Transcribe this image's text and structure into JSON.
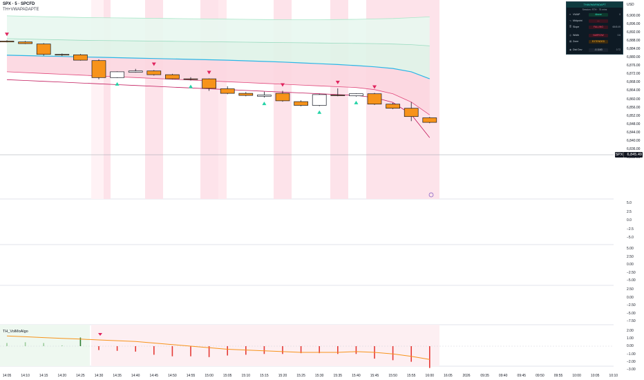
{
  "header": {
    "symbol_line": "SPX · 5 · SPCFD",
    "indicator_line": "TH+VWAPADAPTE",
    "currency": "USD"
  },
  "price_axis": {
    "labels": [
      "6,900.00",
      "6,896.00",
      "6,892.00",
      "6,888.00",
      "6,884.00",
      "6,880.00",
      "6,876.00",
      "6,872.00",
      "6,868.00",
      "6,864.00",
      "6,860.00",
      "6,856.00",
      "6,852.00",
      "6,848.00",
      "6,844.00",
      "6,840.00",
      "6,836.00",
      "6,832.00"
    ],
    "last_price_symbol": "SPX",
    "last_price": "6,845.49"
  },
  "pane_axes": {
    "pane2": [
      "5.0",
      "2.5",
      "0.0",
      "−2.5",
      "−5.0"
    ],
    "pane3": [
      "5.00",
      "2.50",
      "0.00",
      "−2.50",
      "−5.00"
    ],
    "pane4": [
      "2.50",
      "0.00",
      "−2.50",
      "−5.00",
      "−7.50"
    ],
    "pane5": [
      "2.00",
      "1.00",
      "0.00",
      "−1.00",
      "−2.00",
      "−3.00"
    ]
  },
  "time_axis": {
    "labels": [
      "14:05",
      "14:10",
      "14:15",
      "14:20",
      "14:25",
      "14:30",
      "14:35",
      "14:40",
      "14:45",
      "14:50",
      "14:55",
      "15:00",
      "15:05",
      "15:10",
      "15:15",
      "15:20",
      "15:25",
      "15:30",
      "15:35",
      "15:40",
      "15:45",
      "15:50",
      "15:55",
      "16:00",
      "16:05",
      "2026",
      "09:35",
      "09:40",
      "09:45",
      "09:50",
      "09:55",
      "10:00",
      "10:05",
      "10:10"
    ]
  },
  "volmo": {
    "title": "TH_VolMoAlgo"
  },
  "dashboard": {
    "title": "THAVWAPADAPT",
    "subtitle": "Session: RTH · 75 mins",
    "rows": [
      {
        "icon": "≡",
        "label": "VWAP",
        "value": "Above",
        "value_color": "#0e3a2e",
        "text_color": "#2ee6c8",
        "extra": "0"
      },
      {
        "icon": "∿",
        "label": "Midpoint",
        "value": "—",
        "value_color": "#3a1420",
        "text_color": "#ff4d6d",
        "extra": ""
      },
      {
        "icon": "≣",
        "label": "Slope",
        "value": "FALLING",
        "value_color": "#3a1420",
        "text_color": "#ff4d6d",
        "extra": "6845.49"
      },
      {
        "icon": "◎",
        "label": "Width",
        "value": "NARROW",
        "value_color": "#3a1420",
        "text_color": "#ff4d6d",
        "extra": "0.6"
      },
      {
        "icon": "▤",
        "label": "Zone",
        "value": "EXTENDED",
        "value_color": "#3a2a10",
        "text_color": "#ffb020",
        "extra": ""
      },
      {
        "icon": "◉",
        "label": "Dist Dev",
        "value": "-0.1163",
        "value_color": "#1a2430",
        "text_color": "#c9d1d9",
        "extra": "0.72"
      }
    ]
  },
  "chart_data": {
    "type": "candlestick",
    "times": [
      "14:05",
      "14:10",
      "14:15",
      "14:20",
      "14:25",
      "14:30",
      "14:35",
      "14:40",
      "14:45",
      "14:50",
      "14:55",
      "15:00",
      "15:05",
      "15:10",
      "15:15",
      "15:20",
      "15:25",
      "15:30",
      "15:35",
      "15:40",
      "15:45",
      "15:50",
      "15:55",
      "16:00"
    ],
    "candles": [
      {
        "t": "14:05",
        "o": 6888.0,
        "h": 6888.4,
        "l": 6887.4,
        "c": 6887.6
      },
      {
        "t": "14:10",
        "o": 6887.6,
        "h": 6888.0,
        "l": 6886.6,
        "c": 6886.8
      },
      {
        "t": "14:15",
        "o": 6886.6,
        "h": 6887.0,
        "l": 6881.0,
        "c": 6881.6
      },
      {
        "t": "14:20",
        "o": 6881.6,
        "h": 6882.0,
        "l": 6880.8,
        "c": 6881.4
      },
      {
        "t": "14:25",
        "o": 6881.4,
        "h": 6881.8,
        "l": 6878.6,
        "c": 6878.8
      },
      {
        "t": "14:30",
        "o": 6878.6,
        "h": 6879.2,
        "l": 6869.6,
        "c": 6870.4
      },
      {
        "t": "14:35",
        "o": 6870.4,
        "h": 6873.4,
        "l": 6870.2,
        "c": 6873.2
      },
      {
        "t": "14:40",
        "o": 6873.0,
        "h": 6874.6,
        "l": 6872.8,
        "c": 6873.6
      },
      {
        "t": "14:45",
        "o": 6873.6,
        "h": 6874.0,
        "l": 6871.4,
        "c": 6871.8
      },
      {
        "t": "14:50",
        "o": 6871.8,
        "h": 6872.2,
        "l": 6869.6,
        "c": 6869.8
      },
      {
        "t": "14:55",
        "o": 6869.8,
        "h": 6870.6,
        "l": 6869.0,
        "c": 6869.6
      },
      {
        "t": "15:00",
        "o": 6869.8,
        "h": 6870.0,
        "l": 6864.0,
        "c": 6865.2
      },
      {
        "t": "15:05",
        "o": 6865.0,
        "h": 6866.2,
        "l": 6862.4,
        "c": 6862.8
      },
      {
        "t": "15:10",
        "o": 6862.8,
        "h": 6863.4,
        "l": 6861.4,
        "c": 6861.8
      },
      {
        "t": "15:15",
        "o": 6861.4,
        "h": 6863.6,
        "l": 6860.8,
        "c": 6862.0
      },
      {
        "t": "15:20",
        "o": 6862.8,
        "h": 6864.0,
        "l": 6858.8,
        "c": 6859.2
      },
      {
        "t": "15:25",
        "o": 6858.8,
        "h": 6859.4,
        "l": 6856.6,
        "c": 6857.0
      },
      {
        "t": "15:30",
        "o": 6857.0,
        "h": 6862.6,
        "l": 6856.6,
        "c": 6862.2
      },
      {
        "t": "15:35",
        "o": 6862.0,
        "h": 6865.2,
        "l": 6861.4,
        "c": 6861.8
      },
      {
        "t": "15:40",
        "o": 6861.6,
        "h": 6862.8,
        "l": 6861.2,
        "c": 6862.6
      },
      {
        "t": "15:45",
        "o": 6862.6,
        "h": 6863.0,
        "l": 6857.2,
        "c": 6857.6
      },
      {
        "t": "15:50",
        "o": 6857.6,
        "h": 6858.2,
        "l": 6855.2,
        "c": 6855.6
      },
      {
        "t": "15:55",
        "o": 6855.6,
        "h": 6858.6,
        "l": 6849.4,
        "c": 6851.6
      },
      {
        "t": "16:00",
        "o": 6851.0,
        "h": 6851.4,
        "l": 6848.4,
        "c": 6848.8
      }
    ],
    "sell_markers": [
      "14:05",
      "14:45",
      "15:00",
      "15:20",
      "15:35",
      "15:45"
    ],
    "buy_markers": [
      "14:35",
      "14:55",
      "15:15",
      "15:30",
      "15:40"
    ],
    "bar_colors": {
      "up": "#ffffff",
      "down": "#f7931a",
      "border": "#131722"
    },
    "bands": {
      "upper_outer": [
        6900.2,
        6900.0,
        6899.8,
        6899.6,
        6899.4,
        6899.3,
        6899.2,
        6899.1,
        6899.0,
        6898.9,
        6898.8,
        6898.7,
        6898.6,
        6898.5,
        6898.4,
        6898.3,
        6898.3,
        6898.3,
        6898.4,
        6898.5,
        6898.7,
        6898.9,
        6899.3,
        6899.7
      ],
      "upper_inner": [
        6889.2,
        6889.0,
        6888.8,
        6888.6,
        6888.4,
        6888.3,
        6888.2,
        6888.1,
        6888.0,
        6887.9,
        6887.8,
        6887.7,
        6887.6,
        6887.5,
        6887.4,
        6887.3,
        6887.2,
        6887.1,
        6887.0,
        6886.9,
        6886.8,
        6886.6,
        6886.3,
        6885.7
      ],
      "vwap": [
        6881.2,
        6881.0,
        6880.8,
        6880.6,
        6880.4,
        6880.2,
        6880.0,
        6879.8,
        6879.6,
        6879.4,
        6879.2,
        6879.0,
        6878.8,
        6878.5,
        6878.2,
        6877.9,
        6877.5,
        6877.1,
        6876.7,
        6876.2,
        6875.6,
        6874.8,
        6873.2,
        6869.8
      ],
      "lower": [
        6873.2,
        6872.8,
        6872.4,
        6872.0,
        6871.6,
        6871.2,
        6870.8,
        6870.4,
        6870.0,
        6869.6,
        6869.2,
        6868.8,
        6868.4,
        6868.0,
        6867.6,
        6867.2,
        6866.8,
        6866.4,
        6866.0,
        6865.6,
        6864.6,
        6862.6,
        6858.6,
        6852.4
      ],
      "lower_outer": [
        6869.4,
        6869.0,
        6868.6,
        6868.2,
        6867.8,
        6867.4,
        6867.0,
        6866.6,
        6866.2,
        6865.8,
        6865.4,
        6865.0,
        6864.6,
        6864.2,
        6863.8,
        6863.4,
        6863.0,
        6862.6,
        6862.2,
        6861.8,
        6860.8,
        6858.4,
        6852.6,
        6841.4
      ]
    },
    "volmo": {
      "signal_line": [
        1.3,
        1.2,
        1.1,
        1.0,
        0.9,
        0.8,
        0.7,
        0.6,
        0.4,
        0.2,
        0.0,
        -0.2,
        -0.4,
        -0.5,
        -0.6,
        -0.7,
        -0.8,
        -0.8,
        -0.8,
        -0.7,
        -0.8,
        -1.0,
        -1.3,
        -1.7
      ],
      "histogram": [
        0.4,
        0.5,
        0.4,
        0.1,
        1.1,
        -0.5,
        -0.6,
        -0.7,
        -1.1,
        -1.3,
        -1.3,
        -1.4,
        -1.2,
        -1.1,
        -1.0,
        -1.0,
        -0.9,
        -0.9,
        -1.0,
        -1.0,
        -1.6,
        -1.8,
        -2.0,
        -2.8
      ]
    }
  }
}
